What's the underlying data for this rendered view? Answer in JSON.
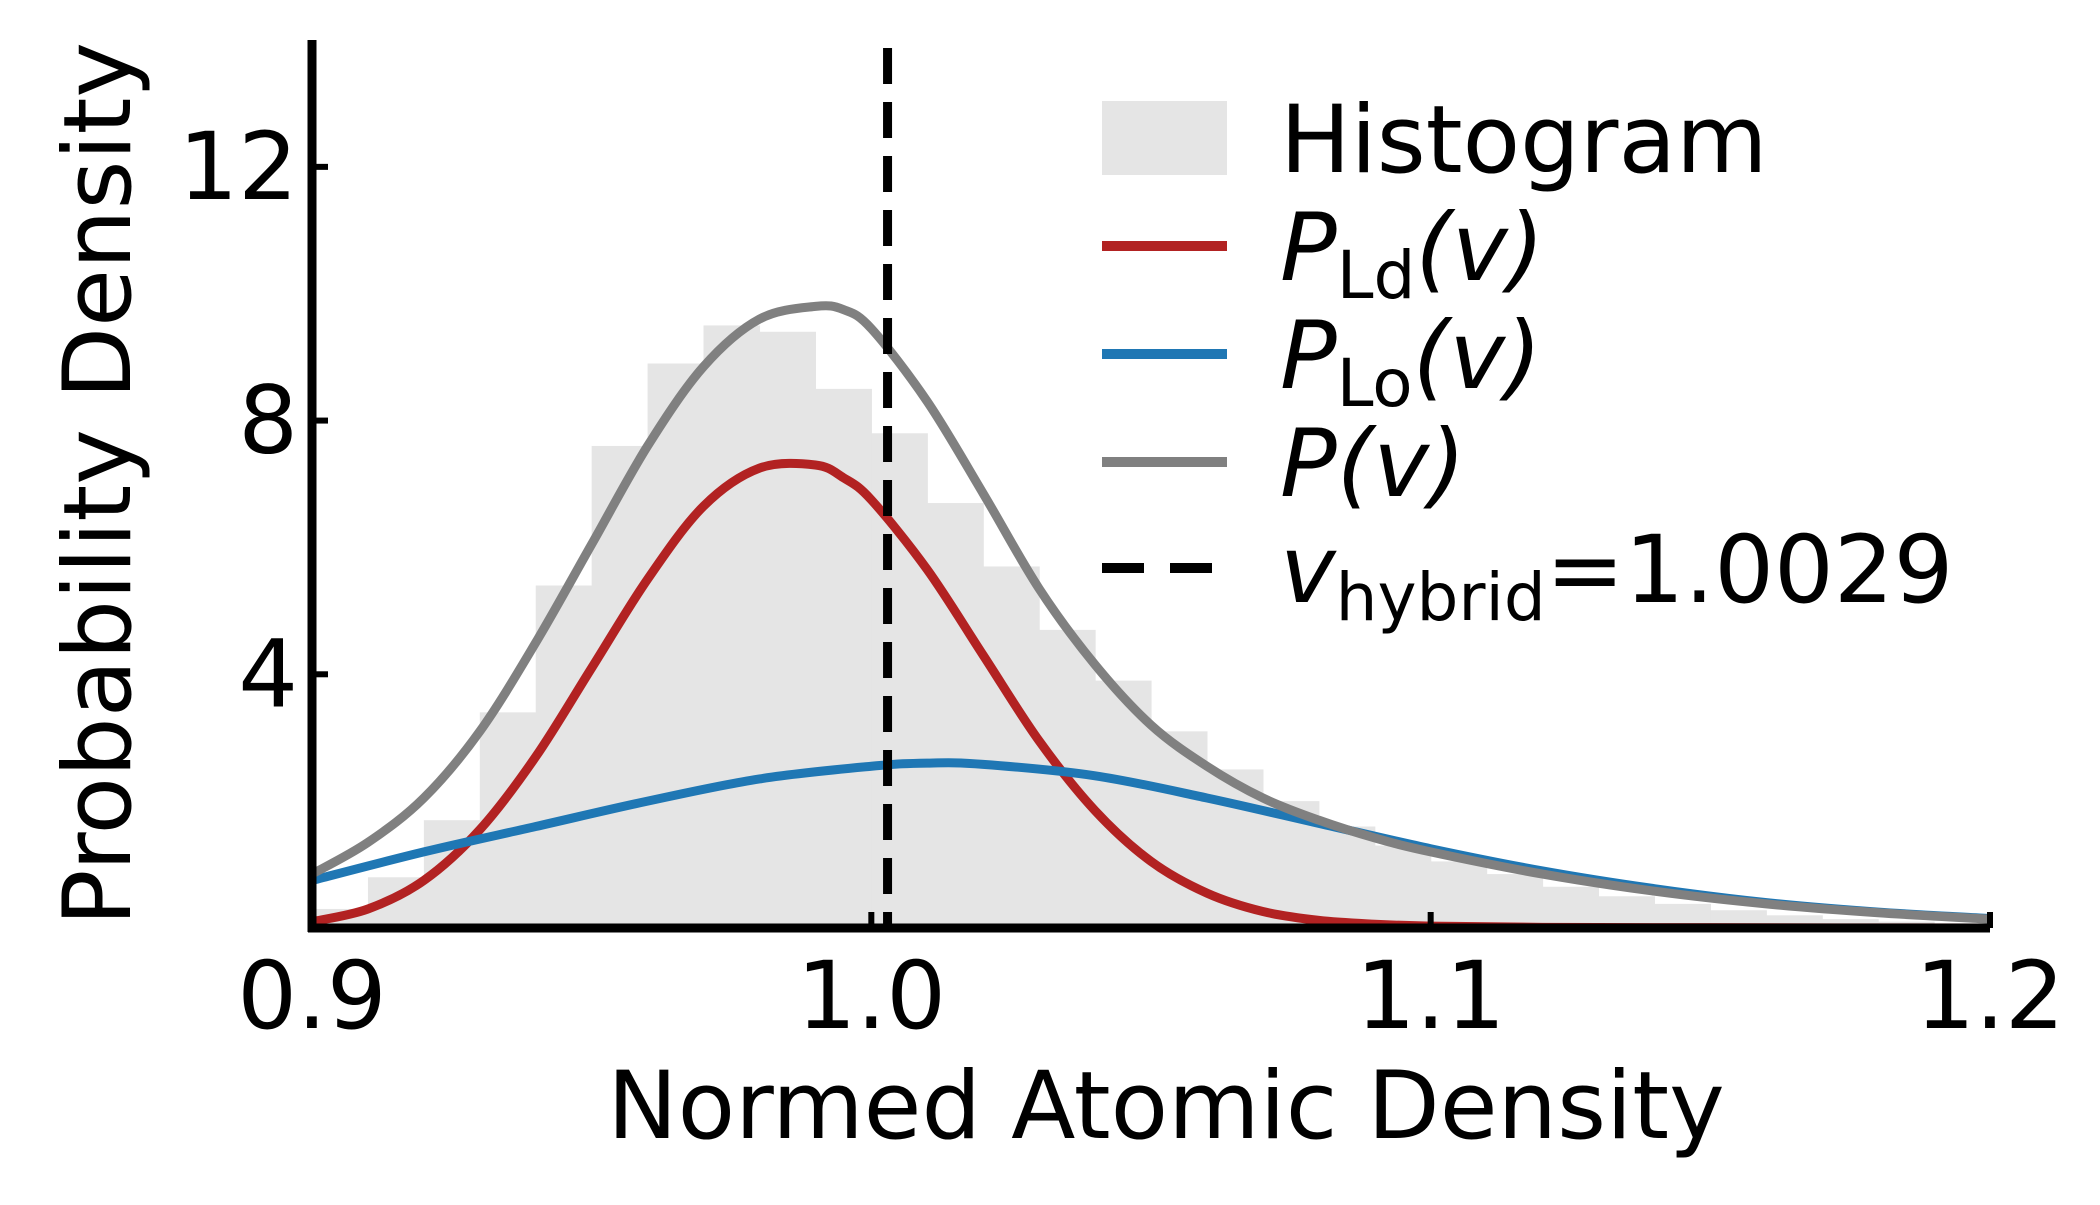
{
  "chart_data": {
    "type": "line",
    "title": "",
    "xlabel": "Normed Atomic Density",
    "ylabel": "Probability Density",
    "xlim": [
      0.9,
      1.2
    ],
    "ylim": [
      0,
      14
    ],
    "xticks": [
      0.9,
      1.0,
      1.1,
      1.2
    ],
    "xtick_labels": [
      "0.9",
      "1.0",
      "1.1",
      "1.2"
    ],
    "yticks": [
      4,
      8,
      12
    ],
    "ytick_labels": [
      "4",
      "8",
      "12"
    ],
    "grid": false,
    "legend_position": "top-right",
    "histogram": {
      "name": "Histogram",
      "color": "#e5e5e5",
      "bin_edges": [
        0.9,
        0.91,
        0.92,
        0.93,
        0.94,
        0.95,
        0.96,
        0.97,
        0.98,
        0.99,
        1.0,
        1.01,
        1.02,
        1.03,
        1.04,
        1.05,
        1.06,
        1.07,
        1.08,
        1.09,
        1.1,
        1.11,
        1.12,
        1.13,
        1.14,
        1.15,
        1.16,
        1.17,
        1.18,
        1.19,
        1.2
      ],
      "counts": [
        0.3,
        0.8,
        1.7,
        3.4,
        5.4,
        7.6,
        8.9,
        9.5,
        9.4,
        8.5,
        7.8,
        6.7,
        5.7,
        4.7,
        3.9,
        3.1,
        2.5,
        2.0,
        1.6,
        1.3,
        1.05,
        0.85,
        0.65,
        0.5,
        0.38,
        0.28,
        0.2,
        0.14,
        0.1,
        0.06
      ]
    },
    "series": [
      {
        "name": "P_Ld(v)",
        "label_main": "P",
        "label_sub": "Ld",
        "label_arg": "(v)",
        "color": "#b22222",
        "x": [
          0.9,
          0.91,
          0.92,
          0.93,
          0.94,
          0.95,
          0.96,
          0.97,
          0.98,
          0.99,
          0.995,
          1.0,
          1.01,
          1.02,
          1.03,
          1.04,
          1.05,
          1.06,
          1.07,
          1.08,
          1.09,
          1.1,
          1.12,
          1.15,
          1.2
        ],
        "y": [
          0.1,
          0.3,
          0.75,
          1.55,
          2.7,
          4.1,
          5.5,
          6.65,
          7.25,
          7.3,
          7.1,
          6.75,
          5.65,
          4.3,
          2.95,
          1.85,
          1.05,
          0.55,
          0.26,
          0.12,
          0.06,
          0.03,
          0.01,
          0.005,
          0.0
        ]
      },
      {
        "name": "P_Lo(v)",
        "label_main": "P",
        "label_sub": "Lo",
        "label_arg": "(v)",
        "color": "#1f77b4",
        "x": [
          0.9,
          0.92,
          0.94,
          0.96,
          0.98,
          1.0,
          1.01,
          1.02,
          1.04,
          1.06,
          1.08,
          1.1,
          1.12,
          1.14,
          1.16,
          1.18,
          1.2
        ],
        "y": [
          0.75,
          1.2,
          1.6,
          2.0,
          2.35,
          2.55,
          2.6,
          2.58,
          2.4,
          2.05,
          1.65,
          1.25,
          0.9,
          0.62,
          0.4,
          0.25,
          0.15
        ]
      },
      {
        "name": "P(v)",
        "label_main": "P",
        "label_sub": "",
        "label_arg": "(v)",
        "color": "#808080",
        "x": [
          0.9,
          0.91,
          0.92,
          0.93,
          0.94,
          0.95,
          0.96,
          0.97,
          0.98,
          0.99,
          0.995,
          1.0,
          1.01,
          1.02,
          1.03,
          1.04,
          1.05,
          1.06,
          1.07,
          1.08,
          1.09,
          1.1,
          1.12,
          1.14,
          1.16,
          1.18,
          1.2
        ],
        "y": [
          0.85,
          1.35,
          2.05,
          3.1,
          4.5,
          6.05,
          7.6,
          8.85,
          9.6,
          9.8,
          9.75,
          9.45,
          8.3,
          6.85,
          5.35,
          4.15,
          3.2,
          2.55,
          2.05,
          1.7,
          1.42,
          1.2,
          0.85,
          0.58,
          0.38,
          0.24,
          0.14
        ]
      }
    ],
    "vline": {
      "x": 1.0029,
      "style": "dashed",
      "color": "#000000",
      "label_main": "v",
      "label_sub": "hybrid",
      "label_rest": "=1.0029"
    }
  }
}
